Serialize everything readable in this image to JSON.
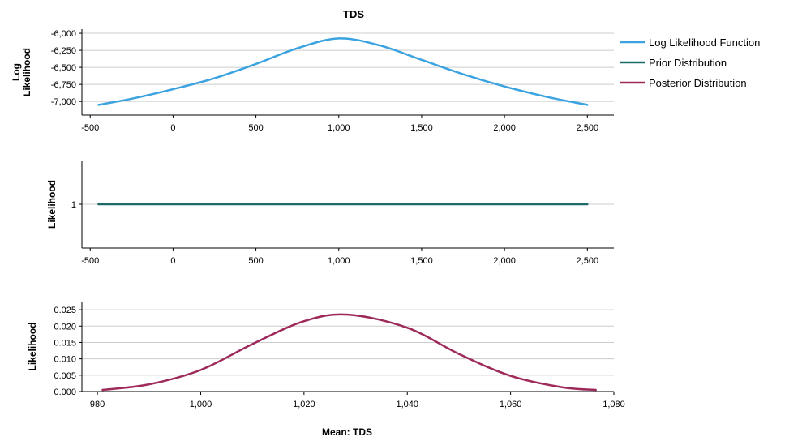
{
  "chart_data": {
    "type": "line",
    "title": "TDS",
    "xlabel": "Mean: TDS",
    "legend": {
      "placement": "right",
      "items": [
        {
          "label": "Log Likelihood Function",
          "color": "#3ba3e0"
        },
        {
          "label": "Prior Distribution",
          "color": "#1d6a6a"
        },
        {
          "label": "Posterior Distribution",
          "color": "#9e2a5c"
        }
      ]
    },
    "panels": [
      {
        "ylabel": [
          "Log",
          "Likelihood"
        ],
        "xlim": [
          -550,
          2660
        ],
        "ylim": [
          -7200,
          -5940
        ],
        "xticks": [
          -500,
          0,
          500,
          1000,
          1500,
          2000,
          2500
        ],
        "xtick_labels": [
          "-500",
          "0",
          "500",
          "1,000",
          "1,500",
          "2,000",
          "2,500"
        ],
        "yticks": [
          -7000,
          -6750,
          -6500,
          -6250,
          -6000
        ],
        "ytick_labels": [
          "-7,000",
          "-6,750",
          "-6,500",
          "-6,250",
          "-6,000"
        ],
        "grid": true,
        "series": [
          {
            "color": "#3ba3e0",
            "x": [
              -450,
              -250,
              0,
              250,
              500,
              750,
              1000,
              1250,
              1500,
              1750,
              2000,
              2250,
              2500
            ],
            "y": [
              -7050,
              -6960,
              -6820,
              -6660,
              -6450,
              -6220,
              -6075,
              -6180,
              -6390,
              -6600,
              -6780,
              -6930,
              -7050
            ]
          }
        ]
      },
      {
        "ylabel": [
          "Likelihood"
        ],
        "xlim": [
          -550,
          2660
        ],
        "ylim": [
          0,
          2
        ],
        "xticks": [
          -500,
          0,
          500,
          1000,
          1500,
          2000,
          2500
        ],
        "xtick_labels": [
          "-500",
          "0",
          "500",
          "1,000",
          "1,500",
          "2,000",
          "2,500"
        ],
        "yticks": [
          1
        ],
        "ytick_labels": [
          "1"
        ],
        "grid": true,
        "series": [
          {
            "color": "#1d6a6a",
            "x": [
              -450,
              2500
            ],
            "y": [
              1,
              1
            ]
          }
        ]
      },
      {
        "ylabel": [
          "Likelihood"
        ],
        "xlim": [
          977,
          1080
        ],
        "ylim": [
          0,
          0.0275
        ],
        "xticks": [
          980,
          1000,
          1020,
          1040,
          1060,
          1080
        ],
        "xtick_labels": [
          "980",
          "1,000",
          "1,020",
          "1,040",
          "1,060",
          "1,080"
        ],
        "yticks": [
          0,
          0.005,
          0.01,
          0.015,
          0.02,
          0.025
        ],
        "ytick_labels": [
          "0.000",
          "0.005",
          "0.010",
          "0.015",
          "0.020",
          "0.025"
        ],
        "grid": true,
        "series": [
          {
            "color": "#9e2a5c",
            "x": [
              981,
              990,
              1000,
              1010,
              1020,
              1028.5,
              1040,
              1050,
              1060,
              1070,
              1076.5
            ],
            "y": [
              0.0005,
              0.0022,
              0.0066,
              0.0145,
              0.0215,
              0.0235,
              0.0195,
              0.0115,
              0.0048,
              0.0013,
              0.0005
            ]
          }
        ]
      }
    ]
  }
}
